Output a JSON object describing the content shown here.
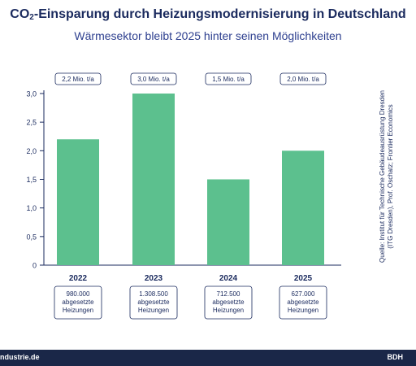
{
  "header": {
    "title_pre": "CO",
    "title_sub": "2",
    "title_post": "-Einsparung durch Heizungsmodernisierung in Deutschland",
    "subtitle": "Wärmesektor bleibt 2025 hinter seinen Möglichkeiten"
  },
  "source": {
    "line1": "Quelle: Institut für Technische Gebäudeausrüstung Dresden",
    "line2": "(ITG Dresden), Prof. Oschatz; Frontier Economics"
  },
  "footer": {
    "left": "ndustrie.de",
    "right": "BDH"
  },
  "chart_data": {
    "type": "bar",
    "title": "CO₂-Einsparung durch Heizungsmodernisierung in Deutschland",
    "subtitle": "Wärmesektor bleibt 2025 hinter seinen Möglichkeiten",
    "categories": [
      "2022",
      "2023",
      "2024",
      "2025"
    ],
    "values": [
      2.2,
      3.0,
      1.5,
      2.0
    ],
    "value_labels": [
      "2,2 Mio. t/a",
      "3,0 Mio. t/a",
      "1,5 Mio. t/a",
      "2,0 Mio. t/a"
    ],
    "annotations": [
      [
        "980.000",
        "abgesetzte",
        "Heizungen"
      ],
      [
        "1.308.500",
        "abgesetzte",
        "Heizungen"
      ],
      [
        "712.500",
        "abgesetzte",
        "Heizungen"
      ],
      [
        "627.000",
        "abgesetzte",
        "Heizungen"
      ]
    ],
    "yticks": [
      "0",
      "0,5",
      "1,0",
      "1,5",
      "2,0",
      "2,5",
      "3,0"
    ],
    "ylim": [
      0,
      3.0
    ],
    "grid": false,
    "colors": {
      "bar": "#5cc08e",
      "text": "#1a2a5e",
      "footer": "#1a2748"
    }
  }
}
